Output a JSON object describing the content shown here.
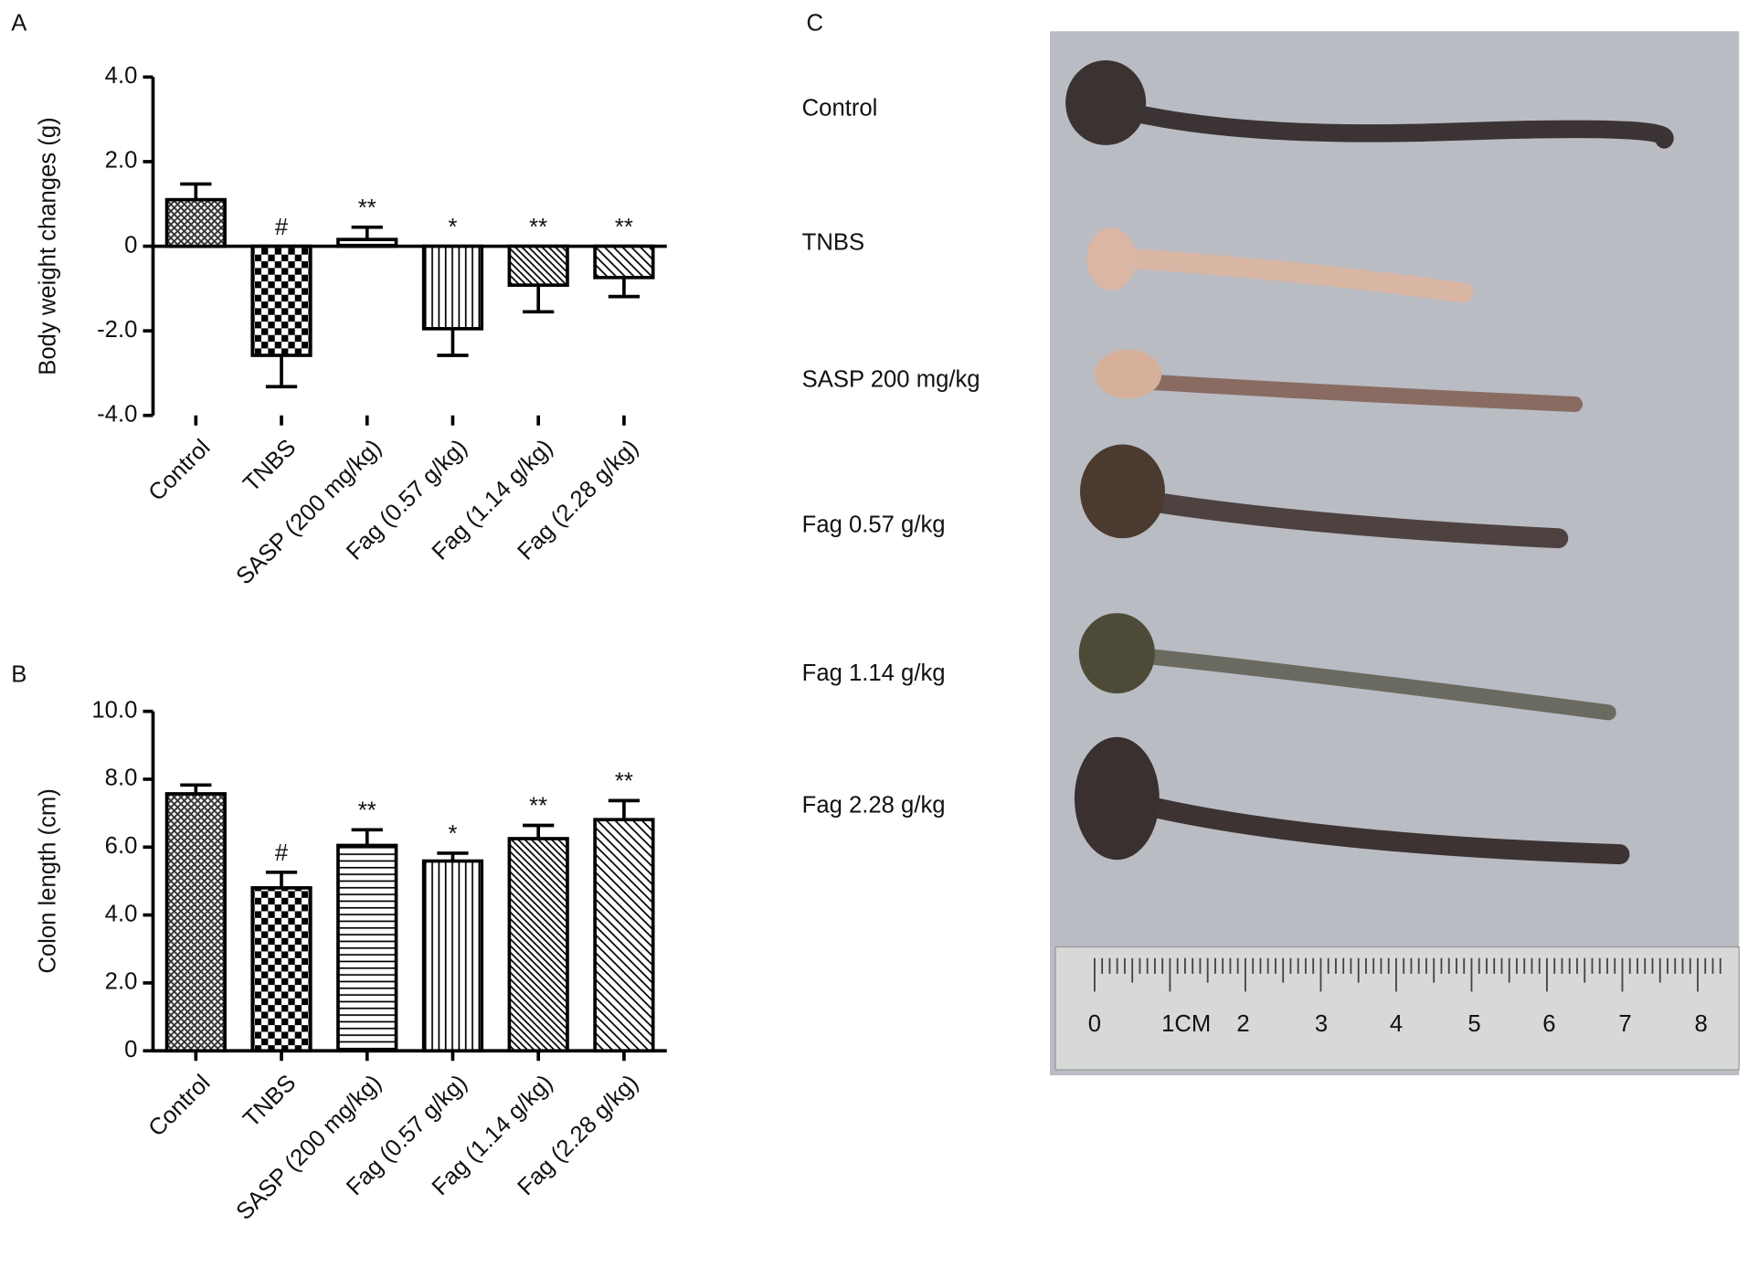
{
  "chart_data": [
    {
      "type": "bar",
      "panel_label": "A",
      "y_label": "Body weight changes (g)",
      "categories": [
        "Control",
        "TNBS",
        "SASP (200 mg/kg)",
        "Fag (0.57 g/kg)",
        "Fag (1.14 g/kg)",
        "Fag (2.28 g/kg)"
      ],
      "values": [
        1.1,
        -2.58,
        0.16,
        -1.95,
        -0.92,
        -0.74
      ],
      "errors": [
        0.37,
        0.74,
        0.29,
        0.63,
        0.63,
        0.45
      ],
      "annotations": [
        null,
        "#",
        "**",
        "*",
        "**",
        "**"
      ],
      "patterns": [
        "crosshatch",
        "checker",
        "horizontal",
        "vertical",
        "diagonal",
        "diagonal-wide"
      ],
      "color": "#000000",
      "ylim": [
        -4,
        4
      ],
      "yticks": [
        {
          "value": 4,
          "label": "4.0"
        },
        {
          "value": 2,
          "label": "2.0"
        },
        0,
        {
          "value": -2,
          "label": "-2.0"
        },
        {
          "value": -4,
          "label": "-4.0"
        }
      ]
    },
    {
      "type": "bar",
      "panel_label": "B",
      "y_label": "Colon length (cm)",
      "categories": [
        "Control",
        "TNBS",
        "SASP (200 mg/kg)",
        "Fag (0.57 g/kg)",
        "Fag (1.14 g/kg)",
        "Fag (2.28 g/kg)"
      ],
      "values": [
        7.57,
        4.8,
        6.05,
        5.59,
        6.25,
        6.81
      ],
      "errors": [
        0.26,
        0.46,
        0.46,
        0.23,
        0.39,
        0.56
      ],
      "annotations": [
        null,
        "#",
        "**",
        "*",
        "**",
        "**"
      ],
      "patterns": [
        "crosshatch",
        "checker",
        "horizontal",
        "vertical",
        "diagonal",
        "diagonal-wide"
      ],
      "color": "#000000",
      "ylim": [
        0,
        10
      ],
      "yticks": [
        0,
        {
          "value": 2,
          "label": "2.0"
        },
        {
          "value": 4,
          "label": "4.0"
        },
        {
          "value": 6,
          "label": "6.0"
        },
        {
          "value": 8,
          "label": "8.0"
        },
        {
          "value": 10,
          "label": "10.0"
        }
      ]
    }
  ],
  "photo": {
    "panel_label": "C",
    "labels": [
      "Control",
      "TNBS",
      "SASP 200 mg/kg",
      "Fag 0.57 g/kg",
      "Fag 1.14 g/kg",
      "Fag 2.28 g/kg"
    ],
    "ruler_labels": [
      "0",
      "1CM",
      "2",
      "3",
      "4",
      "5",
      "6",
      "7",
      "8"
    ]
  }
}
